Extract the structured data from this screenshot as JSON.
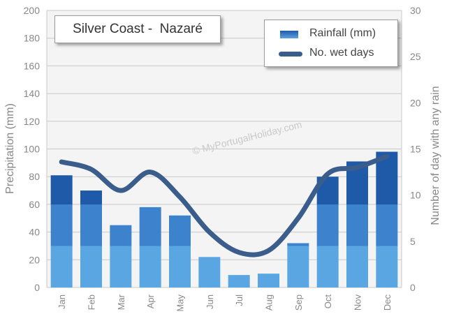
{
  "title": "Silver Coast -  Nazaré",
  "watermark": "© MyPortugalHoliday.com",
  "legend": {
    "rainfall_label": "Rainfall (mm)",
    "wetdays_label": "No. wet days"
  },
  "colors": {
    "bar_top": "#1f5aa8",
    "bar_mid": "#3d82cc",
    "bar_bottom": "#5aa6e2",
    "line": "#3a5d8c",
    "grid": "#c8c8c8",
    "axis_text": "#888888"
  },
  "chart_data": {
    "type": "bar",
    "categories": [
      "Jan",
      "Feb",
      "Mar",
      "Apr",
      "May",
      "Jun",
      "Jul",
      "Aug",
      "Sep",
      "Oct",
      "Nov",
      "Dec"
    ],
    "series": [
      {
        "name": "Rainfall (mm)",
        "type": "bar",
        "axis": "left",
        "values": [
          81,
          70,
          45,
          58,
          52,
          22,
          9,
          10,
          32,
          80,
          91,
          98
        ]
      },
      {
        "name": "No. wet days",
        "type": "line",
        "axis": "right",
        "values": [
          13.6,
          12.8,
          10.5,
          12.5,
          9.8,
          6.0,
          3.8,
          4.0,
          7.5,
          12.3,
          13.0,
          14.2
        ]
      }
    ],
    "ylabel": "Precipitation (mm)",
    "y2label": "Number of day with any rain",
    "ylim": [
      0,
      200
    ],
    "y2lim": [
      0,
      30
    ],
    "yticks": [
      0,
      20,
      40,
      60,
      80,
      100,
      120,
      140,
      160,
      180,
      200
    ],
    "y2ticks": [
      0,
      5,
      10,
      15,
      20,
      25,
      30
    ],
    "grid": true,
    "legend_position": "top-right"
  }
}
